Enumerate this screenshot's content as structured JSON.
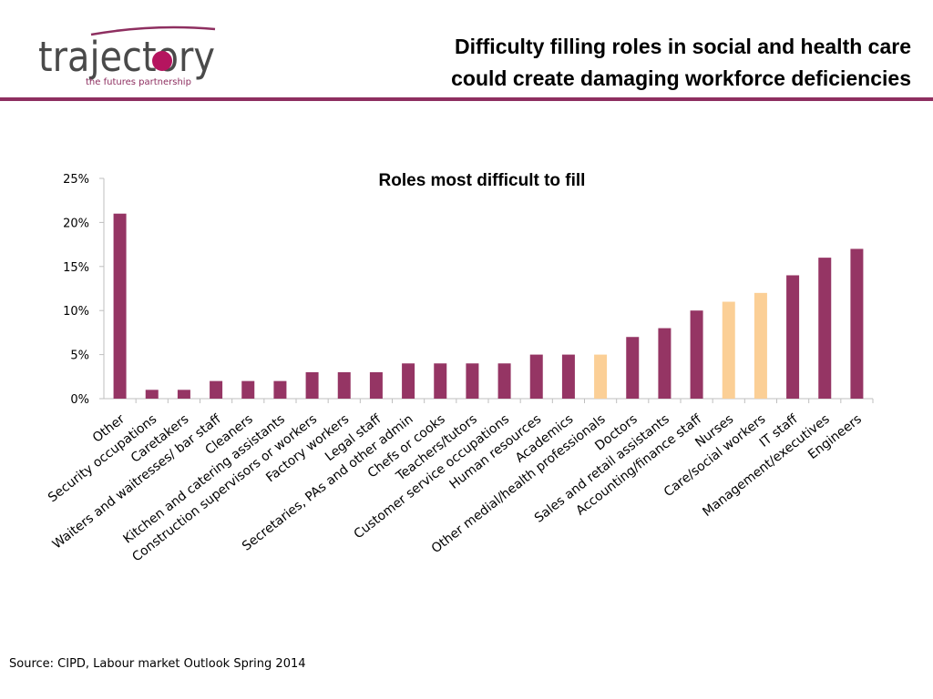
{
  "header": {
    "logo_word": "trajectory",
    "logo_tagline": "the futures partnership",
    "title_line1": "Difficulty filling roles in social and health care",
    "title_line2": "could create damaging workforce deficiencies"
  },
  "colors": {
    "brand": "#8e2f60",
    "bar_default": "#953564",
    "bar_highlight": "#fbcf96",
    "logo_text": "#4a4a4a",
    "axis": "#bfbfbf"
  },
  "chart_data": {
    "type": "bar",
    "title": "Roles most difficult to fill",
    "xlabel": "",
    "ylabel": "",
    "ylim": [
      0,
      25
    ],
    "ytick_values": [
      0,
      5,
      10,
      15,
      20,
      25
    ],
    "ytick_labels": [
      "0%",
      "5%",
      "10%",
      "15%",
      "20%",
      "25%"
    ],
    "grid": false,
    "legend": "none",
    "categories": [
      "Other",
      "Security occupations",
      "Caretakers",
      "Waiters and waitresses/ bar staff",
      "Cleaners",
      "Kitchen and catering assistants",
      "Construction supervisors or workers",
      "Factory workers",
      "Legal staff",
      "Secretaries, PAs and other admin",
      "Chefs or cooks",
      "Teachers/tutors",
      "Customer service occupations",
      "Human resources",
      "Academics",
      "Other medial/health professionals",
      "Doctors",
      "Sales and retail assistants",
      "Accounting/finance staff",
      "Nurses",
      "Care/social workers",
      "IT staff",
      "Management/executives",
      "Engineers"
    ],
    "values": [
      21,
      1,
      1,
      2,
      2,
      2,
      3,
      3,
      3,
      4,
      4,
      4,
      4,
      5,
      5,
      5,
      7,
      8,
      10,
      11,
      12,
      14,
      16,
      17
    ],
    "highlighted": [
      false,
      false,
      false,
      false,
      false,
      false,
      false,
      false,
      false,
      false,
      false,
      false,
      false,
      false,
      false,
      true,
      false,
      false,
      false,
      true,
      true,
      false,
      false,
      false
    ]
  },
  "footer": {
    "source": "Source: CIPD, Labour market Outlook Spring 2014"
  }
}
